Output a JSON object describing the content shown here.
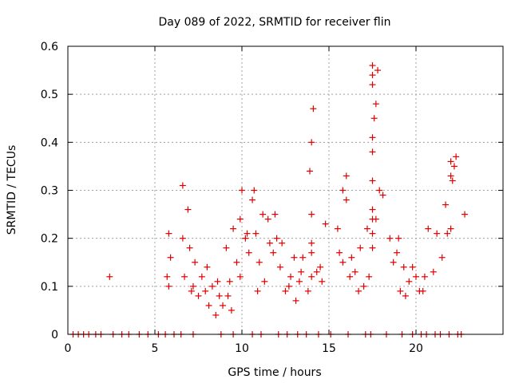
{
  "chart_data": {
    "type": "scatter",
    "title": "Day 089 of 2022, SRMTID for receiver flin",
    "xlabel": "GPS time / hours",
    "ylabel": "SRMTID / TECUs",
    "xlim": [
      0,
      25
    ],
    "ylim": [
      0,
      0.6
    ],
    "xticks": [
      0,
      5,
      10,
      15,
      20
    ],
    "yticks": [
      0,
      0.1,
      0.2,
      0.3,
      0.4,
      0.5,
      0.6
    ],
    "xtick_labels": [
      "0",
      "5",
      "10",
      "15",
      "20"
    ],
    "ytick_labels": [
      "0",
      "0.1",
      "0.2",
      "0.3",
      "0.4",
      "0.5",
      "0.6"
    ],
    "grid": true,
    "marker": "+",
    "series": [
      {
        "name": "SRMTID",
        "color": "#e00000",
        "x": [
          2.4,
          5.7,
          5.8,
          5.9,
          6.6,
          6.7,
          6.9,
          7.0,
          7.1,
          7.2,
          7.3,
          7.5,
          7.7,
          7.9,
          8.1,
          8.3,
          8.5,
          8.7,
          8.9,
          9.1,
          9.3,
          9.5,
          9.7,
          9.9,
          10.0,
          10.2,
          10.4,
          10.6,
          10.8,
          11.0,
          11.3,
          11.6,
          11.9,
          12.2,
          12.5,
          12.8,
          13.1,
          13.3,
          13.5,
          13.9,
          14.0,
          14.1,
          14.3,
          14.5,
          14.8,
          15.5,
          15.8,
          16.0,
          16.2,
          16.5,
          16.8,
          17.0,
          17.2,
          17.5,
          17.6,
          17.7,
          17.8,
          18.1,
          18.5,
          18.9,
          19.1,
          19.3,
          19.6,
          20.0,
          20.4,
          20.7,
          21.0,
          21.5,
          21.7,
          21.8,
          22.1,
          22.2,
          22.3,
          22.8,
          0.3,
          0.6,
          0.9,
          1.2,
          1.6,
          1.9,
          2.6,
          3.1,
          3.5,
          4.1,
          4.6,
          5.2,
          5.6,
          6.1,
          6.5,
          7.2,
          8.8,
          9.5,
          10.6,
          11.1,
          12.1,
          12.6,
          13.2,
          13.7,
          14.4,
          15.1,
          16.1,
          17.1,
          17.4,
          18.3,
          19.2,
          19.8,
          20.3,
          20.6,
          21.1,
          21.4,
          21.9,
          22.4,
          22.6,
          14.0,
          14.0,
          14.0,
          14.0,
          17.5,
          17.5,
          17.5,
          17.5,
          17.5,
          17.5,
          17.5,
          17.5,
          17.5,
          22.0,
          22.0,
          22.0,
          16.0,
          15.8,
          17.9,
          17.7,
          6.6,
          5.8,
          9.9,
          10.7,
          11.5,
          12.3,
          13.0,
          8.0,
          8.6,
          9.2,
          9.4,
          10.3,
          10.9,
          11.2,
          11.8,
          12.0,
          12.7,
          13.4,
          13.8,
          14.6,
          15.6,
          16.3,
          16.7,
          17.3,
          18.7,
          19.0,
          19.4,
          19.8,
          20.2,
          20.5,
          21.2
        ],
        "y": [
          0.12,
          0.12,
          0.1,
          0.16,
          0.31,
          0.12,
          0.26,
          0.18,
          0.09,
          0.1,
          0.15,
          0.08,
          0.12,
          0.09,
          0.06,
          0.1,
          0.04,
          0.08,
          0.06,
          0.18,
          0.11,
          0.22,
          0.15,
          0.12,
          0.3,
          0.2,
          0.17,
          0.28,
          0.21,
          0.15,
          0.11,
          0.19,
          0.25,
          0.14,
          0.09,
          0.12,
          0.07,
          0.11,
          0.16,
          0.34,
          0.4,
          0.47,
          0.13,
          0.14,
          0.23,
          0.22,
          0.15,
          0.28,
          0.12,
          0.13,
          0.18,
          0.1,
          0.22,
          0.38,
          0.45,
          0.48,
          0.55,
          0.29,
          0.2,
          0.17,
          0.09,
          0.14,
          0.11,
          0.12,
          0.09,
          0.22,
          0.13,
          0.16,
          0.27,
          0.21,
          0.32,
          0.35,
          0.37,
          0.25,
          0,
          0,
          0,
          0,
          0,
          0,
          0,
          0,
          0,
          0,
          0,
          0,
          0,
          0,
          0,
          0,
          0,
          0,
          0,
          0,
          0,
          0,
          0,
          0,
          0,
          0,
          0,
          0,
          0,
          0,
          0,
          0,
          0,
          0,
          0,
          0,
          0,
          0,
          0,
          0.25,
          0.17,
          0.12,
          0.19,
          0.56,
          0.54,
          0.52,
          0.41,
          0.32,
          0.26,
          0.24,
          0.21,
          0.18,
          0.36,
          0.33,
          0.22,
          0.33,
          0.3,
          0.3,
          0.24,
          0.2,
          0.21,
          0.24,
          0.3,
          0.24,
          0.19,
          0.16,
          0.14,
          0.11,
          0.08,
          0.05,
          0.21,
          0.09,
          0.25,
          0.17,
          0.2,
          0.1,
          0.13,
          0.09,
          0.11,
          0.17,
          0.16,
          0.09,
          0.12,
          0.15,
          0.2,
          0.08,
          0.14,
          0.09,
          0.12,
          0.21
        ]
      }
    ]
  }
}
